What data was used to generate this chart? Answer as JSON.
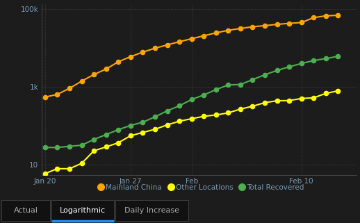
{
  "background_color": "#1c1c1c",
  "plot_bg_color": "#1c1c1c",
  "grid_color": "#3a3a3a",
  "axis_color": "#555555",
  "tick_label_color": "#7a9ab0",
  "xtick_labels": [
    "Jan 20",
    "Jan 27",
    "Feb",
    "Feb 10"
  ],
  "xtick_positions": [
    0,
    7,
    12,
    21
  ],
  "ytick_values": [
    10,
    1000,
    100000
  ],
  "ylim_log": [
    5.5,
    130000
  ],
  "xlim": [
    -0.3,
    25.5
  ],
  "mainland_china": [
    548,
    643,
    920,
    1406,
    2075,
    2877,
    4409,
    5970,
    7783,
    9811,
    11946,
    14380,
    17205,
    20438,
    24324,
    28276,
    31461,
    34876,
    37198,
    40171,
    42638,
    44653,
    59804,
    66492,
    68500
  ],
  "other_locations": [
    6,
    8,
    8,
    11,
    23,
    29,
    37,
    56,
    68,
    82,
    106,
    132,
    153,
    176,
    191,
    216,
    270,
    320,
    395,
    441,
    447,
    505,
    526,
    683,
    794
  ],
  "total_recovered": [
    28,
    28,
    30,
    32,
    45,
    60,
    80,
    103,
    124,
    171,
    243,
    328,
    475,
    623,
    852,
    1124,
    1153,
    1540,
    2050,
    2649,
    3281,
    3996,
    4740,
    5327,
    6101
  ],
  "mainland_color": "#FFA500",
  "other_color": "#FFFF00",
  "recovered_color": "#4CAF50",
  "line_width": 1.5,
  "marker_size": 4.5,
  "legend_labels": [
    "Mainland China",
    "Other Locations",
    "Total Recovered"
  ],
  "legend_colors": [
    "#FFA500",
    "#FFFF00",
    "#4CAF50"
  ],
  "tab_labels": [
    "Actual",
    "Logarithmic",
    "Daily Increase"
  ],
  "tab_active": 1,
  "tab_active_underline_color": "#1E90FF",
  "tab_bg": "#111111",
  "tab_border": "#444444"
}
